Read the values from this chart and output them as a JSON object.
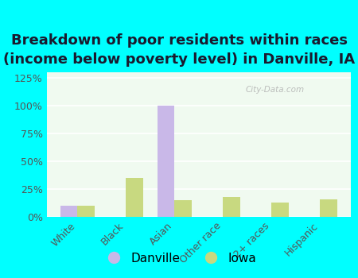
{
  "title": "Breakdown of poor residents within races\n(income below poverty level) in Danville, IA",
  "categories": [
    "White",
    "Black",
    "Asian",
    "Other race",
    "2+ races",
    "Hispanic"
  ],
  "danville_values": [
    0.1,
    0.0,
    1.0,
    0.0,
    0.0,
    0.0
  ],
  "iowa_values": [
    0.1,
    0.35,
    0.15,
    0.18,
    0.13,
    0.16
  ],
  "danville_color": "#c9b8e8",
  "iowa_color": "#c8d980",
  "bar_width": 0.35,
  "ylim": [
    0,
    1.3
  ],
  "yticks": [
    0.0,
    0.25,
    0.5,
    0.75,
    1.0,
    1.25
  ],
  "ytick_labels": [
    "0%",
    "25%",
    "50%",
    "75%",
    "100%",
    "125%"
  ],
  "plot_bg_color": "#f0faf0",
  "title_fontsize": 13,
  "tick_fontsize": 9,
  "legend_fontsize": 11,
  "watermark": "City-Data.com",
  "outer_bg": "#00ffff",
  "title_color": "#1a1a2e"
}
